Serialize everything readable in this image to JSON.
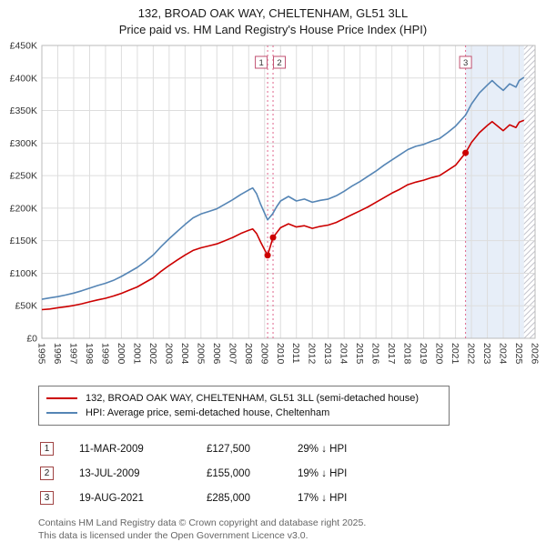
{
  "title": "132, BROAD OAK WAY, CHELTENHAM, GL51 3LL",
  "subtitle": "Price paid vs. HM Land Registry's House Price Index (HPI)",
  "chart_data": {
    "type": "line",
    "x_range": [
      1995,
      2026
    ],
    "y_range": [
      0,
      450000
    ],
    "grid": true,
    "x_ticks": [
      1995,
      1996,
      1997,
      1998,
      1999,
      2000,
      2001,
      2002,
      2003,
      2004,
      2005,
      2006,
      2007,
      2008,
      2009,
      2010,
      2011,
      2012,
      2013,
      2014,
      2015,
      2016,
      2017,
      2018,
      2019,
      2020,
      2021,
      2022,
      2023,
      2024,
      2025,
      2026
    ],
    "y_ticks": [
      {
        "value": 0,
        "label": "£0"
      },
      {
        "value": 50000,
        "label": "£50K"
      },
      {
        "value": 100000,
        "label": "£100K"
      },
      {
        "value": 150000,
        "label": "£150K"
      },
      {
        "value": 200000,
        "label": "£200K"
      },
      {
        "value": 250000,
        "label": "£250K"
      },
      {
        "value": 300000,
        "label": "£300K"
      },
      {
        "value": 350000,
        "label": "£350K"
      },
      {
        "value": 400000,
        "label": "£400K"
      },
      {
        "value": 450000,
        "label": "£450K"
      }
    ],
    "colors": {
      "price_paid": "#cc0000",
      "hpi": "#5585b5",
      "sale_line": "#e0668c",
      "sale_marker": "#cc0000",
      "shading": "#e7eef8",
      "hatch": "#c4c4cc",
      "grid": "#dddddd",
      "plot_border": "#bbbbbb",
      "sale_box_border": "#c05070"
    },
    "series": [
      {
        "id": "price-paid",
        "name": "132, BROAD OAK WAY, CHELTENHAM, GL51 3LL (semi-detached house)",
        "color": "#cc0000",
        "points": [
          [
            1995,
            44000
          ],
          [
            1995.5,
            45000
          ],
          [
            1996,
            47000
          ],
          [
            1996.5,
            48500
          ],
          [
            1997,
            50500
          ],
          [
            1997.5,
            53000
          ],
          [
            1998,
            56000
          ],
          [
            1998.5,
            59000
          ],
          [
            1999,
            61500
          ],
          [
            1999.5,
            65000
          ],
          [
            2000,
            69000
          ],
          [
            2000.5,
            74000
          ],
          [
            2001,
            79000
          ],
          [
            2001.5,
            86000
          ],
          [
            2002,
            93000
          ],
          [
            2002.5,
            103000
          ],
          [
            2003,
            112000
          ],
          [
            2003.5,
            120000
          ],
          [
            2004,
            128000
          ],
          [
            2004.5,
            135000
          ],
          [
            2005,
            139000
          ],
          [
            2005.5,
            142000
          ],
          [
            2006,
            145000
          ],
          [
            2006.5,
            150000
          ],
          [
            2007,
            155000
          ],
          [
            2007.5,
            161000
          ],
          [
            2008,
            166000
          ],
          [
            2008.25,
            168000
          ],
          [
            2008.5,
            161000
          ],
          [
            2008.75,
            148000
          ],
          [
            2009,
            136000
          ],
          [
            2009.19,
            127500
          ],
          [
            2009.53,
            155000
          ],
          [
            2009.75,
            162000
          ],
          [
            2010,
            170000
          ],
          [
            2010.5,
            176000
          ],
          [
            2011,
            171000
          ],
          [
            2011.5,
            173000
          ],
          [
            2012,
            169000
          ],
          [
            2012.5,
            172000
          ],
          [
            2013,
            174000
          ],
          [
            2013.5,
            178000
          ],
          [
            2014,
            184000
          ],
          [
            2014.5,
            190000
          ],
          [
            2015,
            196000
          ],
          [
            2015.5,
            202000
          ],
          [
            2016,
            209000
          ],
          [
            2016.5,
            216000
          ],
          [
            2017,
            223000
          ],
          [
            2017.5,
            229000
          ],
          [
            2018,
            236000
          ],
          [
            2018.5,
            240000
          ],
          [
            2019,
            243000
          ],
          [
            2019.5,
            247000
          ],
          [
            2020,
            250000
          ],
          [
            2020.5,
            258000
          ],
          [
            2021,
            266000
          ],
          [
            2021.63,
            285000
          ],
          [
            2022,
            301000
          ],
          [
            2022.5,
            316000
          ],
          [
            2023,
            327000
          ],
          [
            2023.3,
            333000
          ],
          [
            2023.6,
            327000
          ],
          [
            2024,
            319000
          ],
          [
            2024.4,
            328000
          ],
          [
            2024.8,
            324000
          ],
          [
            2025,
            332000
          ],
          [
            2025.3,
            335000
          ]
        ]
      },
      {
        "id": "hpi",
        "name": "HPI: Average price, semi-detached house, Cheltenham",
        "color": "#5585b5",
        "points": [
          [
            1995,
            60000
          ],
          [
            1995.5,
            62000
          ],
          [
            1996,
            64000
          ],
          [
            1996.5,
            66500
          ],
          [
            1997,
            69500
          ],
          [
            1997.5,
            73000
          ],
          [
            1998,
            77000
          ],
          [
            1998.5,
            81000
          ],
          [
            1999,
            84500
          ],
          [
            1999.5,
            89000
          ],
          [
            2000,
            95000
          ],
          [
            2000.5,
            102000
          ],
          [
            2001,
            109000
          ],
          [
            2001.5,
            118000
          ],
          [
            2002,
            128000
          ],
          [
            2002.5,
            141000
          ],
          [
            2003,
            153000
          ],
          [
            2003.5,
            164000
          ],
          [
            2004,
            175000
          ],
          [
            2004.5,
            185000
          ],
          [
            2005,
            191000
          ],
          [
            2005.5,
            195000
          ],
          [
            2006,
            199000
          ],
          [
            2006.5,
            206000
          ],
          [
            2007,
            213000
          ],
          [
            2007.5,
            221000
          ],
          [
            2008,
            228000
          ],
          [
            2008.25,
            231000
          ],
          [
            2008.5,
            222000
          ],
          [
            2008.75,
            206000
          ],
          [
            2009,
            192000
          ],
          [
            2009.19,
            182000
          ],
          [
            2009.5,
            191000
          ],
          [
            2009.75,
            202000
          ],
          [
            2010,
            211000
          ],
          [
            2010.5,
            218000
          ],
          [
            2011,
            211000
          ],
          [
            2011.5,
            214000
          ],
          [
            2012,
            209000
          ],
          [
            2012.5,
            212000
          ],
          [
            2013,
            214000
          ],
          [
            2013.5,
            219000
          ],
          [
            2014,
            226000
          ],
          [
            2014.5,
            234000
          ],
          [
            2015,
            241000
          ],
          [
            2015.5,
            249000
          ],
          [
            2016,
            257000
          ],
          [
            2016.5,
            266000
          ],
          [
            2017,
            274000
          ],
          [
            2017.5,
            282000
          ],
          [
            2018,
            290000
          ],
          [
            2018.5,
            295000
          ],
          [
            2019,
            298000
          ],
          [
            2019.5,
            303000
          ],
          [
            2020,
            307000
          ],
          [
            2020.5,
            316000
          ],
          [
            2021,
            326000
          ],
          [
            2021.63,
            343000
          ],
          [
            2022,
            360000
          ],
          [
            2022.5,
            377000
          ],
          [
            2023,
            389000
          ],
          [
            2023.3,
            396000
          ],
          [
            2023.6,
            389000
          ],
          [
            2024,
            381000
          ],
          [
            2024.4,
            391000
          ],
          [
            2024.8,
            386000
          ],
          [
            2025,
            396000
          ],
          [
            2025.3,
            401000
          ]
        ]
      }
    ],
    "sales": [
      {
        "n": "1",
        "x": 2009.19,
        "value": 127500,
        "label_dx": -7
      },
      {
        "n": "2",
        "x": 2009.53,
        "value": 155000,
        "label_dx": 7
      },
      {
        "n": "3",
        "x": 2021.63,
        "value": 285000,
        "label_dx": 0
      }
    ],
    "shaded_region": {
      "from": 2021.63,
      "to": 2025.3
    },
    "hatched_region": {
      "from": 2025.3,
      "to": 2026
    }
  },
  "legend": [
    {
      "label": "132, BROAD OAK WAY, CHELTENHAM, GL51 3LL (semi-detached house)",
      "color": "#cc0000"
    },
    {
      "label": "HPI: Average price, semi-detached house, Cheltenham",
      "color": "#5585b5"
    }
  ],
  "transactions": [
    {
      "n": "1",
      "date": "11-MAR-2009",
      "price": "£127,500",
      "hpi": "29% ↓ HPI"
    },
    {
      "n": "2",
      "date": "13-JUL-2009",
      "price": "£155,000",
      "hpi": "19% ↓ HPI"
    },
    {
      "n": "3",
      "date": "19-AUG-2021",
      "price": "£285,000",
      "hpi": "17% ↓ HPI"
    }
  ],
  "footer": {
    "line1": "Contains HM Land Registry data © Crown copyright and database right 2025.",
    "line2": "This data is licensed under the Open Government Licence v3.0."
  }
}
